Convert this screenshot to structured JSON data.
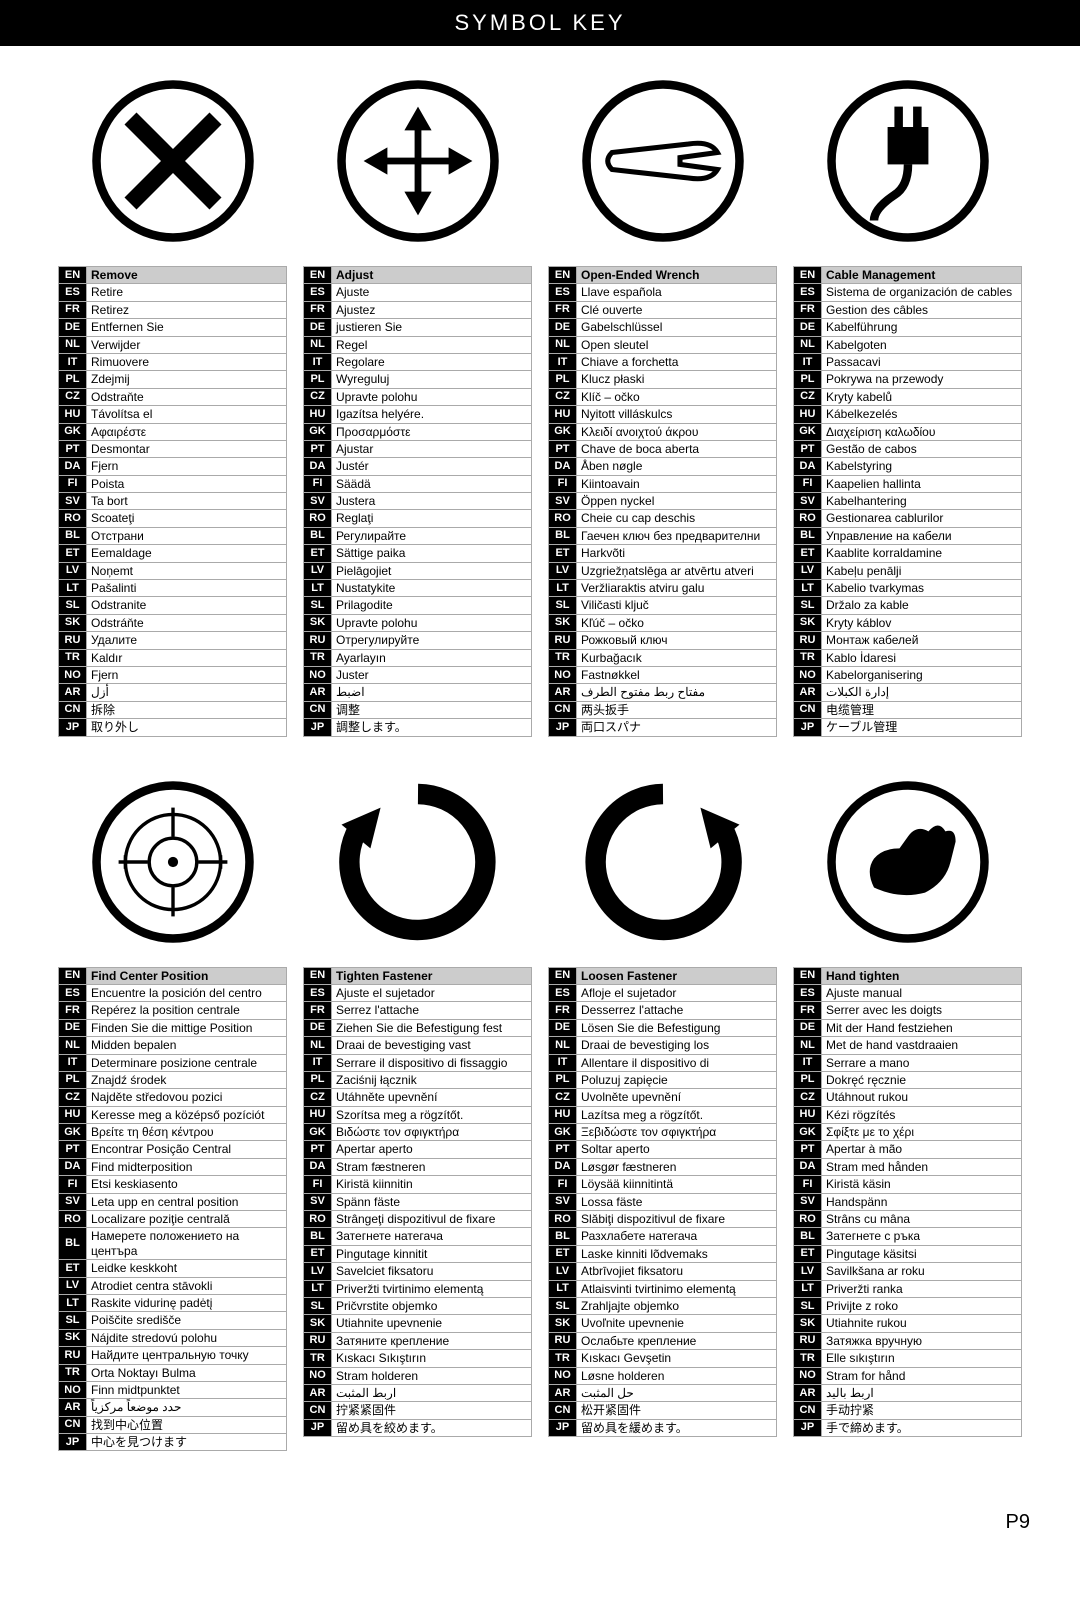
{
  "header": "SYMBOL KEY",
  "page_number": "P9",
  "langs": [
    "EN",
    "ES",
    "FR",
    "DE",
    "NL",
    "IT",
    "PL",
    "CZ",
    "HU",
    "GK",
    "PT",
    "DA",
    "FI",
    "SV",
    "RO",
    "BL",
    "ET",
    "LV",
    "LT",
    "SL",
    "SK",
    "RU",
    "TR",
    "NO",
    "AR",
    "CN",
    "JP"
  ],
  "symbols": {
    "remove": {
      "EN": "Remove",
      "ES": "Retire",
      "FR": "Retirez",
      "DE": "Entfernen Sie",
      "NL": "Verwijder",
      "IT": "Rimuovere",
      "PL": "Zdejmij",
      "CZ": "Odstraňte",
      "HU": "Távolítsa el",
      "GK": "Αφαιρέστε",
      "PT": "Desmontar",
      "DA": "Fjern",
      "FI": "Poista",
      "SV": "Ta bort",
      "RO": "Scoateţi",
      "BL": "Отстрани",
      "ET": "Eemaldage",
      "LV": "Noņemt",
      "LT": "Pašalinti",
      "SL": "Odstranite",
      "SK": "Odstráňte",
      "RU": "Удалите",
      "TR": "Kaldır",
      "NO": "Fjern",
      "AR": "أزل",
      "CN": "拆除",
      "JP": "取り外し"
    },
    "adjust": {
      "EN": "Adjust",
      "ES": "Ajuste",
      "FR": "Ajustez",
      "DE": "justieren Sie",
      "NL": "Regel",
      "IT": "Regolare",
      "PL": "Wyreguluj",
      "CZ": "Upravte polohu",
      "HU": "Igazítsa helyére.",
      "GK": "Προσαρμόστε",
      "PT": "Ajustar",
      "DA": "Justér",
      "FI": "Säädä",
      "SV": "Justera",
      "RO": "Reglaţi",
      "BL": "Регулирайте",
      "ET": "Sättige paika",
      "LV": "Pielāgojiet",
      "LT": "Nustatykite",
      "SL": "Prilagodite",
      "SK": "Upravte polohu",
      "RU": "Отрегулируйте",
      "TR": "Ayarlayın",
      "NO": "Juster",
      "AR": "اضبط",
      "CN": "调整",
      "JP": "調整します。"
    },
    "wrench": {
      "EN": "Open-Ended Wrench",
      "ES": "Llave española",
      "FR": "Clé ouverte",
      "DE": "Gabelschlüssel",
      "NL": "Open sleutel",
      "IT": "Chiave a forchetta",
      "PL": "Klucz płaski",
      "CZ": "Klíč – očko",
      "HU": "Nyitott villáskulcs",
      "GK": "Κλειδί ανοιχτού άκρου",
      "PT": "Chave de boca aberta",
      "DA": "Åben nøgle",
      "FI": "Kiintoavain",
      "SV": "Öppen nyckel",
      "RO": "Cheie cu cap deschis",
      "BL": "Гаечен ключ без предварителни",
      "ET": "Harkvõti",
      "LV": "Uzgriežņatslēga ar atvērtu atveri",
      "LT": "Veržliaraktis atviru galu",
      "SL": "Viličasti ključ",
      "SK": "Kľúč – očko",
      "RU": "Рожковый ключ",
      "TR": "Kurbağacık",
      "NO": "Fastnøkkel",
      "AR": "مفتاح ربط مفتوح الطرف",
      "CN": "两头扳手",
      "JP": "両口スパナ"
    },
    "cable": {
      "EN": "Cable Management",
      "ES": "Sistema de organización de cables",
      "FR": "Gestion des câbles",
      "DE": "Kabelführung",
      "NL": "Kabelgoten",
      "IT": "Passacavi",
      "PL": "Pokrywa na przewody",
      "CZ": "Kryty kabelů",
      "HU": "Kábelkezelés",
      "GK": "Διαχείριση καλωδίου",
      "PT": "Gestão de cabos",
      "DA": "Kabelstyring",
      "FI": "Kaapelien hallinta",
      "SV": "Kabelhantering",
      "RO": "Gestionarea cablurilor",
      "BL": "Управление на кабели",
      "ET": "Kaablite korraldamine",
      "LV": "Kabeļu penālji",
      "LT": "Kabelio tvarkymas",
      "SL": "Držalo za kable",
      "SK": "Kryty káblov",
      "RU": "Монтаж кабелей",
      "TR": "Kablo İdaresi",
      "NO": "Kabelorganisering",
      "AR": "إدارة الكبلات",
      "CN": "电缆管理",
      "JP": "ケーブル管理"
    },
    "center": {
      "EN": "Find Center Position",
      "ES": "Encuentre la posición del centro",
      "FR": "Repérez la position centrale",
      "DE": "Finden Sie die mittige Position",
      "NL": "Midden bepalen",
      "IT": "Determinare posizione centrale",
      "PL": "Znajdź środek",
      "CZ": "Najděte středovou pozici",
      "HU": "Keresse meg a középső pozíciót",
      "GK": "Βρείτε τη θέση κέντρου",
      "PT": "Encontrar Posição Central",
      "DA": "Find midterposition",
      "FI": "Etsi keskiasento",
      "SV": "Leta upp en central position",
      "RO": "Localizare poziţie centrală",
      "BL": "Намерете положението на центъра",
      "ET": "Leidke keskkoht",
      "LV": "Atrodiet centra stāvokli",
      "LT": "Raskite vidurinę padėtį",
      "SL": "Poiščite središče",
      "SK": "Nájdite stredovú polohu",
      "RU": "Найдите центральную точку",
      "TR": "Orta Noktayı Bulma",
      "NO": "Finn midtpunktet",
      "AR": "حدد موضعاً مركزياً",
      "CN": "找到中心位置",
      "JP": "中心を見つけます"
    },
    "tighten": {
      "EN": "Tighten Fastener",
      "ES": "Ajuste el sujetador",
      "FR": "Serrez l'attache",
      "DE": "Ziehen Sie die Befestigung fest",
      "NL": "Draai de bevestiging vast",
      "IT": "Serrare il dispositivo di fissaggio",
      "PL": "Zaciśnij łącznik",
      "CZ": "Utáhněte upevnění",
      "HU": "Szorítsa meg a rögzítőt.",
      "GK": "Βιδώστε τον σφιγκτήρα",
      "PT": "Apertar aperto",
      "DA": "Stram fæstneren",
      "FI": "Kiristä kiinnitin",
      "SV": "Spänn fäste",
      "RO": "Strângeţi dispozitivul de fixare",
      "BL": "Затегнете натегача",
      "ET": "Pingutage kinnitit",
      "LV": "Savelciet fiksatoru",
      "LT": "Priveržti tvirtinimo elementą",
      "SL": "Pričvrstite objemko",
      "SK": "Utiahnite upevnenie",
      "RU": "Затяните крепление",
      "TR": "Kıskacı Sıkıştırın",
      "NO": "Stram holderen",
      "AR": "اربط المثبت",
      "CN": "拧紧紧固件",
      "JP": "留め具を絞めます。"
    },
    "loosen": {
      "EN": "Loosen Fastener",
      "ES": "Afloje el sujetador",
      "FR": "Desserrez l'attache",
      "DE": "Lösen Sie die Befestigung",
      "NL": "Draai de bevestiging los",
      "IT": "Allentare il dispositivo di",
      "PL": "Poluzuj zapięcie",
      "CZ": "Uvolněte upevnění",
      "HU": "Lazítsa meg a rögzítőt.",
      "GK": "Ξεβιδώστε τον σφιγκτήρα",
      "PT": "Soltar aperto",
      "DA": "Løsgør fæstneren",
      "FI": "Löysää kiinnitintä",
      "SV": "Lossa fäste",
      "RO": "Slăbiţi dispozitivul de fixare",
      "BL": "Разхлабете натегача",
      "ET": "Laske kinniti lõdvemaks",
      "LV": "Atbrīvojiet fiksatoru",
      "LT": "Atlaisvinti tvirtinimo elementą",
      "SL": "Zrahljajte objemko",
      "SK": "Uvoľnite upevnenie",
      "RU": "Ослабьте крепление",
      "TR": "Kıskacı Gevşetin",
      "NO": "Løsne holderen",
      "AR": "حل المثبت",
      "CN": "松开紧固件",
      "JP": "留め具を緩めます。"
    },
    "hand": {
      "EN": "Hand tighten",
      "ES": "Ajuste manual",
      "FR": "Serrer avec les doigts",
      "DE": "Mit der Hand festziehen",
      "NL": "Met de hand vastdraaien",
      "IT": "Serrare a mano",
      "PL": "Dokręć ręcznie",
      "CZ": "Utáhnout rukou",
      "HU": "Kézi rögzítés",
      "GK": "Σφίξτε με το χέρι",
      "PT": "Apertar à mão",
      "DA": "Stram med hånden",
      "FI": "Kiristä käsin",
      "SV": "Handspänn",
      "RO": "Strâns cu mâna",
      "BL": "Затегнете с ръка",
      "ET": "Pingutage käsitsi",
      "LV": "Savilkšana ar roku",
      "LT": "Priveržti ranka",
      "SL": "Privijte z roko",
      "SK": "Utiahnite rukou",
      "RU": "Затяжка вручную",
      "TR": "Elle sıkıştırın",
      "NO": "Stram for hånd",
      "AR": "اربط باليد",
      "CN": "手动拧紧",
      "JP": "手で締めます。"
    }
  }
}
